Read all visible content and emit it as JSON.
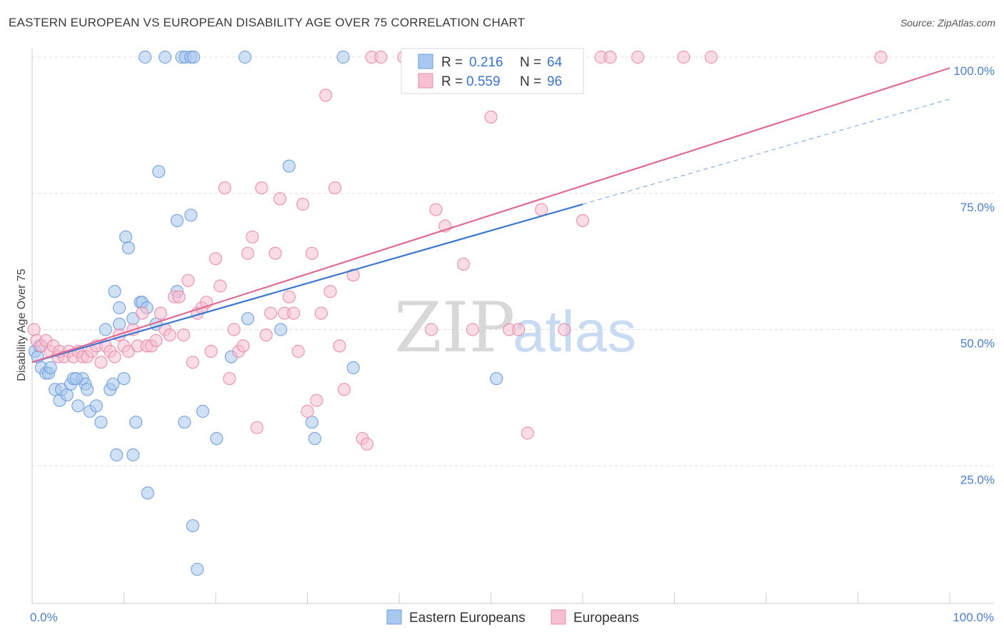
{
  "header": {
    "title": "EASTERN EUROPEAN VS EUROPEAN DISABILITY AGE OVER 75 CORRELATION CHART",
    "source": "Source: ZipAtlas.com"
  },
  "watermark": {
    "zip": "ZIP",
    "atlas": "atlas"
  },
  "colors": {
    "blue_fill": "#a9c8ef",
    "blue_stroke": "#6f9fdc",
    "blue_line": "#3a78d0",
    "pink_fill": "#f6bfd2",
    "pink_stroke": "#e98cab",
    "pink_line": "#e06a96",
    "grid": "#dddddd",
    "tick_text": "#4a7fd4"
  },
  "legend": {
    "rows": [
      {
        "r_label": "R = ",
        "r_value": "0.216",
        "n_label": "N = ",
        "n_value": "64"
      },
      {
        "r_label": "R = ",
        "r_value": "0.559",
        "n_label": "N = ",
        "n_value": "96"
      }
    ]
  },
  "bottom_legend": {
    "items": [
      "Eastern Europeans",
      "Europeans"
    ]
  },
  "chart_data": {
    "type": "scatter",
    "title": "EASTERN EUROPEAN VS EUROPEAN DISABILITY AGE OVER 75 CORRELATION CHART",
    "xlabel": "",
    "ylabel": "Disability Age Over 75",
    "xlim": [
      0,
      100
    ],
    "ylim": [
      0,
      103
    ],
    "x_tick_labels": [
      "0.0%",
      "100.0%"
    ],
    "y_ticks": [
      {
        "value": 25,
        "label": "25.0%"
      },
      {
        "value": 50,
        "label": "50.0%"
      },
      {
        "value": 75,
        "label": "75.0%"
      },
      {
        "value": 100,
        "label": "100.0%"
      }
    ],
    "series": [
      {
        "name": "Eastern Europeans",
        "color": "#a9c8ef",
        "r": 0.216,
        "n": 64,
        "trend": {
          "x0": 0,
          "y0": 44.0,
          "x1": 60,
          "y1": 73.0,
          "dash_to_x": 100,
          "dash_to_y": 92.3
        },
        "points": [
          [
            0.3,
            46
          ],
          [
            0.6,
            45
          ],
          [
            0.8,
            47
          ],
          [
            1.0,
            43
          ],
          [
            1.5,
            42
          ],
          [
            1.8,
            42
          ],
          [
            2.0,
            43
          ],
          [
            2.5,
            39
          ],
          [
            3.0,
            37
          ],
          [
            3.2,
            39
          ],
          [
            3.8,
            38
          ],
          [
            4.2,
            40
          ],
          [
            4.5,
            41
          ],
          [
            5.0,
            36
          ],
          [
            5.5,
            41
          ],
          [
            5.8,
            40
          ],
          [
            6.0,
            39
          ],
          [
            6.3,
            35
          ],
          [
            7.0,
            36
          ],
          [
            7.5,
            33
          ],
          [
            8.0,
            50
          ],
          [
            8.5,
            39
          ],
          [
            8.8,
            40
          ],
          [
            9.0,
            57
          ],
          [
            9.5,
            51
          ],
          [
            9.2,
            27
          ],
          [
            10.0,
            41
          ],
          [
            10.2,
            67
          ],
          [
            10.5,
            65
          ],
          [
            11.0,
            27
          ],
          [
            11.3,
            33
          ],
          [
            11.0,
            52
          ],
          [
            11.8,
            55
          ],
          [
            12.0,
            55
          ],
          [
            12.5,
            54
          ],
          [
            12.6,
            20
          ],
          [
            13.5,
            51
          ],
          [
            13.8,
            79
          ],
          [
            15.8,
            57
          ],
          [
            15.8,
            70
          ],
          [
            16.6,
            33
          ],
          [
            17.3,
            71
          ],
          [
            17.5,
            14
          ],
          [
            18.0,
            6
          ],
          [
            18.6,
            35
          ],
          [
            20.1,
            30
          ],
          [
            21.7,
            45
          ],
          [
            23.2,
            100
          ],
          [
            23.5,
            52
          ],
          [
            27.1,
            50
          ],
          [
            28.0,
            80
          ],
          [
            30.5,
            33
          ],
          [
            30.8,
            30
          ],
          [
            33.9,
            100
          ],
          [
            35.0,
            43
          ],
          [
            50.6,
            41
          ],
          [
            12.3,
            100
          ],
          [
            14.5,
            100
          ],
          [
            16.3,
            100
          ],
          [
            16.7,
            100
          ],
          [
            17.3,
            100
          ],
          [
            17.6,
            100
          ],
          [
            9.5,
            54
          ],
          [
            4.8,
            41
          ]
        ]
      },
      {
        "name": "Europeans",
        "color": "#f6bfd2",
        "r": 0.559,
        "n": 96,
        "trend": {
          "x0": 0,
          "y0": 44.0,
          "x1": 100,
          "y1": 98.0
        },
        "points": [
          [
            0.2,
            50
          ],
          [
            0.5,
            48
          ],
          [
            1.0,
            47
          ],
          [
            1.5,
            48
          ],
          [
            2.0,
            46
          ],
          [
            2.3,
            47
          ],
          [
            2.8,
            45
          ],
          [
            3.0,
            46
          ],
          [
            3.5,
            45
          ],
          [
            4.0,
            46
          ],
          [
            4.5,
            45
          ],
          [
            5.0,
            46
          ],
          [
            5.5,
            45
          ],
          [
            6.0,
            45
          ],
          [
            6.5,
            46
          ],
          [
            7.0,
            47
          ],
          [
            7.5,
            44
          ],
          [
            8.0,
            47
          ],
          [
            8.5,
            46
          ],
          [
            9.0,
            45
          ],
          [
            9.5,
            49
          ],
          [
            10.0,
            47
          ],
          [
            10.5,
            46
          ],
          [
            11.0,
            50
          ],
          [
            11.5,
            47
          ],
          [
            12.0,
            53
          ],
          [
            12.5,
            47
          ],
          [
            13.0,
            47
          ],
          [
            13.5,
            48
          ],
          [
            14.0,
            53
          ],
          [
            14.5,
            50
          ],
          [
            15.0,
            49
          ],
          [
            15.5,
            56
          ],
          [
            16.0,
            56
          ],
          [
            16.5,
            49
          ],
          [
            17.0,
            59
          ],
          [
            17.5,
            44
          ],
          [
            18.0,
            53
          ],
          [
            18.5,
            54
          ],
          [
            19.0,
            55
          ],
          [
            19.5,
            46
          ],
          [
            20.0,
            63
          ],
          [
            20.5,
            58
          ],
          [
            21.0,
            76
          ],
          [
            21.5,
            41
          ],
          [
            22.0,
            50
          ],
          [
            22.5,
            46
          ],
          [
            23.0,
            47
          ],
          [
            23.5,
            64
          ],
          [
            24.0,
            67
          ],
          [
            24.5,
            32
          ],
          [
            25.0,
            76
          ],
          [
            25.5,
            49
          ],
          [
            26.0,
            53
          ],
          [
            26.5,
            64
          ],
          [
            27.0,
            74
          ],
          [
            27.5,
            53
          ],
          [
            28.0,
            56
          ],
          [
            28.5,
            53
          ],
          [
            29.0,
            46
          ],
          [
            29.5,
            73
          ],
          [
            30.0,
            35
          ],
          [
            30.5,
            64
          ],
          [
            31.0,
            37
          ],
          [
            31.5,
            53
          ],
          [
            32.0,
            93
          ],
          [
            32.5,
            57
          ],
          [
            33.0,
            76
          ],
          [
            33.5,
            47
          ],
          [
            34.0,
            39
          ],
          [
            35.0,
            60
          ],
          [
            36.0,
            30
          ],
          [
            36.5,
            29
          ],
          [
            37.0,
            100
          ],
          [
            38.0,
            100
          ],
          [
            40.5,
            100
          ],
          [
            42.0,
            100
          ],
          [
            43.5,
            50
          ],
          [
            44.0,
            72
          ],
          [
            45.0,
            69
          ],
          [
            47.0,
            62
          ],
          [
            48.0,
            50
          ],
          [
            50.0,
            89
          ],
          [
            52.0,
            50
          ],
          [
            53.0,
            50
          ],
          [
            54.0,
            31
          ],
          [
            54.5,
            100
          ],
          [
            55.5,
            72
          ],
          [
            58.0,
            50
          ],
          [
            60.0,
            70
          ],
          [
            62.0,
            100
          ],
          [
            63.0,
            100
          ],
          [
            66.0,
            100
          ],
          [
            71.0,
            100
          ],
          [
            74.0,
            100
          ],
          [
            92.5,
            100
          ]
        ]
      }
    ]
  }
}
